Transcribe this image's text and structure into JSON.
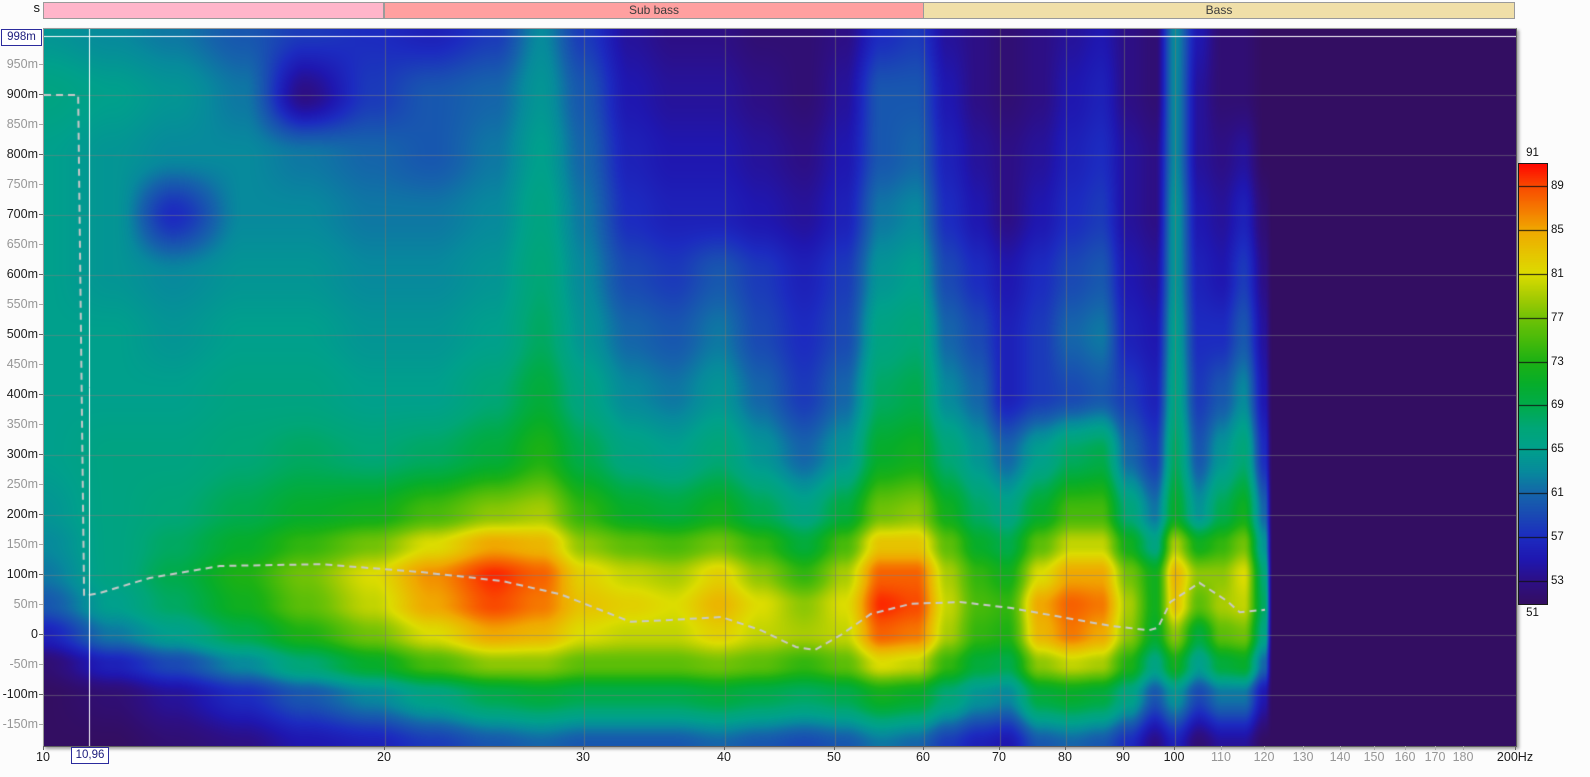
{
  "cursor": {
    "freq_hz": 10.96,
    "time_s": 0.998,
    "freq_label": "10,96",
    "time_label": "998m"
  },
  "bands": [
    {
      "label": "",
      "from_hz": 10,
      "to_hz": 20,
      "color": "#ffb5ca"
    },
    {
      "label": "Sub bass",
      "from_hz": 20,
      "to_hz": 60,
      "color": "#ffa0a0"
    },
    {
      "label": "Bass",
      "from_hz": 60,
      "to_hz": 200,
      "color": "#f0dfa8"
    }
  ],
  "chart_data": {
    "type": "heatmap",
    "subtype": "spectrogram",
    "title": "",
    "xlabel": "Hz",
    "ylabel": "s",
    "x_axis": {
      "scale": "log",
      "min_hz": 10,
      "max_hz": 200,
      "ticks": [
        {
          "f": 10,
          "label": "10",
          "major": true
        },
        {
          "f": 20,
          "label": "20",
          "major": true
        },
        {
          "f": 30,
          "label": "30",
          "major": true
        },
        {
          "f": 40,
          "label": "40",
          "major": true
        },
        {
          "f": 50,
          "label": "50",
          "major": true
        },
        {
          "f": 60,
          "label": "60",
          "major": true
        },
        {
          "f": 70,
          "label": "70",
          "major": true
        },
        {
          "f": 80,
          "label": "80",
          "major": true
        },
        {
          "f": 90,
          "label": "90",
          "major": true
        },
        {
          "f": 100,
          "label": "100",
          "major": true
        },
        {
          "f": 110,
          "label": "110",
          "major": false
        },
        {
          "f": 120,
          "label": "120",
          "major": false
        },
        {
          "f": 130,
          "label": "130",
          "major": false
        },
        {
          "f": 140,
          "label": "140",
          "major": false
        },
        {
          "f": 150,
          "label": "150",
          "major": false
        },
        {
          "f": 160,
          "label": "160",
          "major": false
        },
        {
          "f": 170,
          "label": "170",
          "major": false
        },
        {
          "f": 180,
          "label": "180",
          "major": false
        },
        {
          "f": 200,
          "label": "200Hz",
          "major": true
        }
      ]
    },
    "y_axis": {
      "unit": "s",
      "min_ms": -185,
      "max_ms": 1010,
      "ticks": [
        {
          "t": 950,
          "label": "950m",
          "major": false
        },
        {
          "t": 900,
          "label": "900m",
          "major": true
        },
        {
          "t": 850,
          "label": "850m",
          "major": false
        },
        {
          "t": 800,
          "label": "800m",
          "major": true
        },
        {
          "t": 750,
          "label": "750m",
          "major": false
        },
        {
          "t": 700,
          "label": "700m",
          "major": true
        },
        {
          "t": 650,
          "label": "650m",
          "major": false
        },
        {
          "t": 600,
          "label": "600m",
          "major": true
        },
        {
          "t": 550,
          "label": "550m",
          "major": false
        },
        {
          "t": 500,
          "label": "500m",
          "major": true
        },
        {
          "t": 450,
          "label": "450m",
          "major": false
        },
        {
          "t": 400,
          "label": "400m",
          "major": true
        },
        {
          "t": 350,
          "label": "350m",
          "major": false
        },
        {
          "t": 300,
          "label": "300m",
          "major": true
        },
        {
          "t": 250,
          "label": "250m",
          "major": false
        },
        {
          "t": 200,
          "label": "200m",
          "major": true
        },
        {
          "t": 150,
          "label": "150m",
          "major": false
        },
        {
          "t": 100,
          "label": "100m",
          "major": true
        },
        {
          "t": 50,
          "label": "50m",
          "major": false
        },
        {
          "t": 0,
          "label": "0",
          "major": true
        },
        {
          "t": -50,
          "label": "-50m",
          "major": false
        },
        {
          "t": -100,
          "label": "-100m",
          "major": true
        },
        {
          "t": -150,
          "label": "-150m",
          "major": false
        }
      ]
    },
    "gridlines": {
      "x_hz": [
        20,
        30,
        40,
        50,
        60,
        70,
        80,
        90,
        100
      ],
      "y_ms": [
        900,
        800,
        700,
        600,
        500,
        400,
        300,
        200,
        100,
        0,
        -100
      ]
    },
    "colorbar": {
      "min_db": 51,
      "max_db": 91,
      "top_label": "91",
      "bottom_label": "51",
      "tick_values": [
        89,
        85,
        81,
        77,
        73,
        69,
        65,
        61,
        57,
        53
      ],
      "stops": [
        [
          51,
          "#330e62"
        ],
        [
          53,
          "#2d0f85"
        ],
        [
          55,
          "#1f17b0"
        ],
        [
          57,
          "#1c2bc0"
        ],
        [
          59,
          "#1a49b4"
        ],
        [
          61,
          "#1565aa"
        ],
        [
          63,
          "#078a9c"
        ],
        [
          65,
          "#00a08c"
        ],
        [
          67,
          "#00a677"
        ],
        [
          69,
          "#00ab4c"
        ],
        [
          71,
          "#06ad2b"
        ],
        [
          73,
          "#1cb114"
        ],
        [
          75,
          "#47ba0a"
        ],
        [
          77,
          "#71c206"
        ],
        [
          79,
          "#a8cc02"
        ],
        [
          81,
          "#dcdc00"
        ],
        [
          83,
          "#e6c300"
        ],
        [
          85,
          "#f0a800"
        ],
        [
          87,
          "#f57800"
        ],
        [
          89,
          "#f94a00"
        ],
        [
          91,
          "#ff0800"
        ]
      ]
    },
    "grid": {
      "background_db": 51,
      "freqs_hz": [
        10,
        11.5,
        13,
        15,
        17,
        19.5,
        22,
        25,
        27.5,
        30,
        33,
        36,
        39.5,
        43,
        47,
        51,
        55,
        59,
        63,
        67,
        71,
        76,
        81,
        86,
        91,
        96,
        100,
        105,
        110,
        115,
        120,
        122,
        130,
        160,
        200
      ],
      "times_ms": [
        1008,
        900,
        800,
        700,
        600,
        500,
        400,
        300,
        200,
        150,
        100,
        50,
        0,
        -50,
        -100,
        -185
      ],
      "values_db": [
        [
          64,
          63,
          62,
          60,
          58,
          57,
          56,
          58,
          63,
          58,
          54,
          53,
          53,
          52,
          52,
          53,
          57,
          58,
          54,
          53,
          52,
          53,
          54,
          55,
          53,
          52,
          63,
          55,
          52,
          52,
          51,
          51,
          51,
          51,
          51
        ],
        [
          66,
          65,
          64,
          62,
          53,
          58,
          60,
          61,
          64,
          60,
          55,
          54,
          54,
          53,
          52,
          54,
          60,
          60,
          55,
          53,
          52,
          53,
          55,
          56,
          53,
          52,
          63,
          54,
          52,
          52,
          51,
          51,
          51,
          51,
          51
        ],
        [
          65,
          64,
          63,
          63,
          62,
          61,
          60,
          62,
          65,
          61,
          56,
          55,
          55,
          54,
          53,
          55,
          60,
          61,
          56,
          54,
          53,
          54,
          56,
          57,
          54,
          53,
          63,
          54,
          53,
          54,
          51,
          51,
          51,
          51,
          51
        ],
        [
          65,
          64,
          57,
          63,
          63,
          62,
          62,
          63,
          66,
          62,
          57,
          56,
          56,
          55,
          54,
          56,
          62,
          63,
          57,
          55,
          53,
          55,
          57,
          58,
          54,
          53,
          64,
          55,
          54,
          56,
          52,
          51,
          51,
          51,
          51
        ],
        [
          65,
          64,
          63,
          64,
          64,
          63,
          63,
          64,
          67,
          63,
          59,
          58,
          60,
          58,
          56,
          58,
          64,
          65,
          59,
          57,
          55,
          57,
          59,
          60,
          55,
          54,
          64,
          56,
          55,
          58,
          53,
          51,
          51,
          51,
          51
        ],
        [
          65,
          65,
          64,
          65,
          65,
          64,
          64,
          65,
          68,
          64,
          61,
          60,
          62,
          59,
          57,
          59,
          66,
          67,
          61,
          59,
          56,
          58,
          61,
          62,
          56,
          55,
          65,
          57,
          57,
          60,
          54,
          51,
          51,
          51,
          51
        ],
        [
          65,
          65,
          65,
          66,
          66,
          65,
          65,
          67,
          70,
          66,
          63,
          62,
          64,
          61,
          58,
          61,
          68,
          69,
          63,
          61,
          56,
          58,
          59,
          60,
          58,
          56,
          66,
          58,
          60,
          63,
          55,
          51,
          51,
          51,
          51
        ],
        [
          65,
          66,
          66,
          67,
          68,
          67,
          68,
          70,
          73,
          69,
          66,
          65,
          67,
          64,
          61,
          64,
          71,
          72,
          67,
          64,
          61,
          65,
          68,
          69,
          61,
          58,
          68,
          60,
          64,
          67,
          57,
          51,
          51,
          51,
          51
        ],
        [
          64,
          66,
          67,
          69,
          71,
          72,
          75,
          78,
          79,
          74,
          71,
          70,
          72,
          69,
          66,
          70,
          77,
          78,
          72,
          68,
          66,
          71,
          75,
          75,
          67,
          62,
          71,
          64,
          69,
          72,
          61,
          51,
          51,
          51,
          51
        ],
        [
          63,
          66,
          68,
          71,
          74,
          77,
          81,
          85,
          84,
          78,
          76,
          75,
          77,
          74,
          70,
          75,
          83,
          83,
          76,
          71,
          69,
          76,
          80,
          80,
          72,
          66,
          79,
          72,
          74,
          77,
          64,
          51,
          51,
          51,
          51
        ],
        [
          62,
          66,
          69,
          73,
          77,
          81,
          86,
          90,
          88,
          82,
          80,
          79,
          82,
          78,
          74,
          79,
          88,
          88,
          79,
          74,
          72,
          81,
          85,
          85,
          77,
          72,
          84,
          78,
          78,
          81,
          67,
          51,
          51,
          51,
          51
        ],
        [
          60,
          65,
          68,
          72,
          76,
          80,
          85,
          89,
          87,
          83,
          82,
          81,
          84,
          81,
          78,
          81,
          90,
          89,
          80,
          75,
          74,
          85,
          88,
          87,
          79,
          72,
          83,
          76,
          79,
          80,
          68,
          51,
          51,
          51,
          51
        ],
        [
          56,
          62,
          65,
          69,
          73,
          77,
          81,
          85,
          84,
          81,
          80,
          80,
          82,
          80,
          79,
          80,
          88,
          87,
          79,
          74,
          73,
          84,
          87,
          85,
          78,
          71,
          78,
          70,
          76,
          77,
          66,
          51,
          51,
          51,
          51
        ],
        [
          52,
          56,
          59,
          63,
          67,
          71,
          75,
          78,
          78,
          76,
          76,
          76,
          77,
          76,
          74,
          76,
          81,
          80,
          74,
          70,
          69,
          78,
          80,
          79,
          73,
          66,
          72,
          65,
          70,
          71,
          61,
          51,
          51,
          51,
          51
        ],
        [
          51,
          52,
          54,
          57,
          60,
          63,
          66,
          69,
          70,
          69,
          69,
          69,
          70,
          69,
          68,
          69,
          72,
          71,
          67,
          64,
          63,
          70,
          71,
          70,
          66,
          60,
          64,
          59,
          62,
          62,
          55,
          51,
          51,
          51,
          51
        ],
        [
          51,
          51,
          52,
          53,
          55,
          56,
          58,
          60,
          61,
          60,
          60,
          60,
          61,
          60,
          59,
          60,
          62,
          61,
          58,
          56,
          55,
          60,
          61,
          60,
          57,
          53,
          56,
          52,
          54,
          54,
          51,
          51,
          51,
          51,
          51
        ]
      ]
    },
    "peak_time_curve": {
      "color": "#c8c8c8",
      "points": [
        [
          10,
          900
        ],
        [
          10.72,
          900
        ],
        [
          10.85,
          65
        ],
        [
          11.2,
          70
        ],
        [
          12.4,
          95
        ],
        [
          14.3,
          115
        ],
        [
          17.6,
          118
        ],
        [
          21.5,
          105
        ],
        [
          25.4,
          90
        ],
        [
          28.6,
          68
        ],
        [
          31,
          42
        ],
        [
          33,
          22
        ],
        [
          35.8,
          25
        ],
        [
          39.7,
          30
        ],
        [
          43,
          8
        ],
        [
          46.2,
          -20
        ],
        [
          48,
          -25
        ],
        [
          50.6,
          0
        ],
        [
          53.8,
          35
        ],
        [
          58.4,
          52
        ],
        [
          64.5,
          55
        ],
        [
          71.6,
          45
        ],
        [
          79.3,
          30
        ],
        [
          87.7,
          15
        ],
        [
          94.8,
          8
        ],
        [
          96.5,
          12
        ],
        [
          99,
          55
        ],
        [
          105,
          87
        ],
        [
          111,
          57
        ],
        [
          114,
          38
        ],
        [
          120,
          42
        ]
      ]
    }
  }
}
